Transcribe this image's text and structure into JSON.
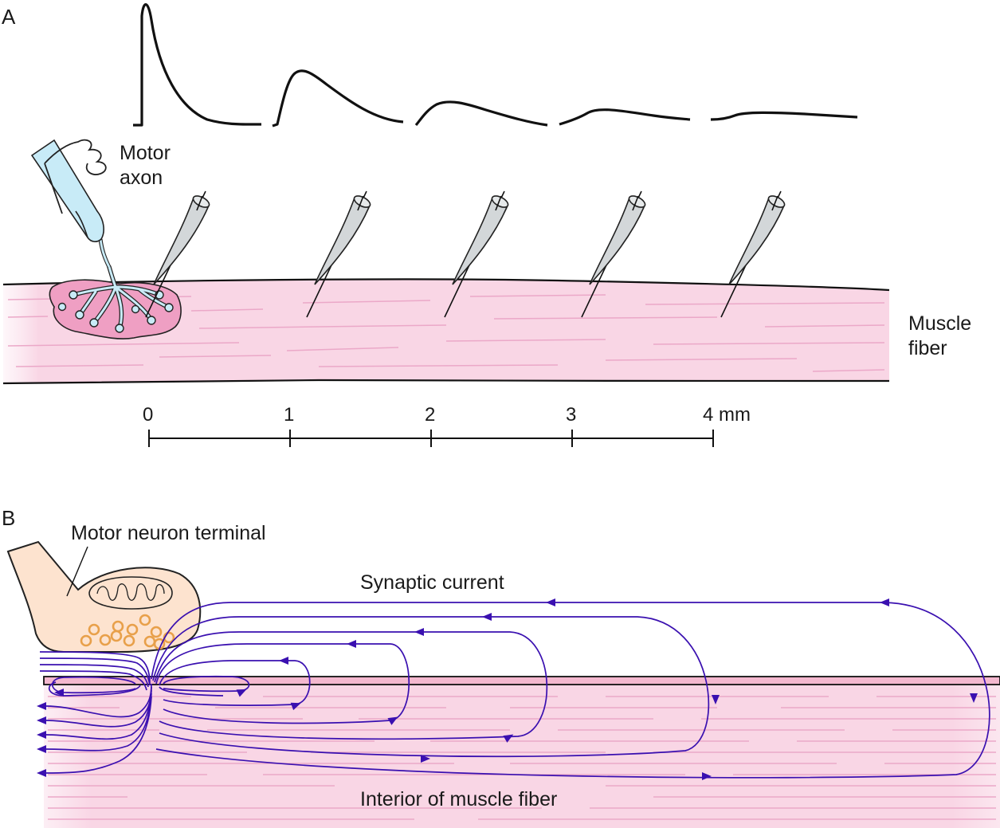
{
  "panel_a": {
    "label": "A",
    "motor_axon_line1": "Motor",
    "motor_axon_line2": "axon",
    "muscle_fiber_line1": "Muscle",
    "muscle_fiber_line2": "fiber",
    "scale_ticks": [
      "0",
      "1",
      "2",
      "3",
      "4 mm"
    ],
    "recordings": [
      {
        "distance": "0"
      },
      {
        "distance": "1"
      },
      {
        "distance": "2"
      },
      {
        "distance": "3"
      },
      {
        "distance": "4 mm"
      }
    ]
  },
  "panel_b": {
    "label": "B",
    "terminal_label": "Motor neuron terminal",
    "current_label": "Synaptic current",
    "interior_label": "Interior of muscle fiber"
  },
  "colors": {
    "muscle_pink": "#f9d6e5",
    "striation": "#eba8c8",
    "terminal_fill": "#fde3cf",
    "axon_blue": "#c8ebf7",
    "synaptic_current": "#3a10b0",
    "vesicle": "#e8a04a"
  }
}
